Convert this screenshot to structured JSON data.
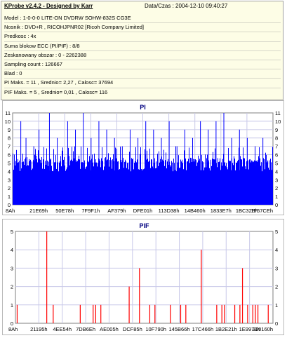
{
  "info": {
    "app_title": "KProbe v2.4.2 - Designed by Karr",
    "datetime_label": "Data/Czas :",
    "datetime_value": "2004-12-10 09:40:27",
    "lines": [
      "Model : 1-0-0-0 LITE-ON DVDRW SOHW-832S  CG3E",
      "Nosnik : DVD+R , RICOHJPNR02 [Ricoh Company Limited]",
      "Predkosc : 4x",
      "Suma blokow ECC (PI/PIF) : 8/8",
      "Zeskanowany obszar : 0 - 2262388",
      "Sampling count : 126667",
      "Blad : 0",
      "PI Maks. = 11 , Srednio= 2,27 , Calosc= 37694",
      "PIF Maks. = 5 , Srednio= 0,01 , Calosc= 116"
    ]
  },
  "colors": {
    "pi_fill": "#0000ff",
    "pif_bar": "#ff0000",
    "grid": "#c8c8e8",
    "title": "#000080",
    "info_bg": "#fdfde6"
  },
  "chart_data": [
    {
      "type": "bar",
      "title": "PI",
      "ylim": [
        0,
        11
      ],
      "yticks": [
        0,
        1,
        2,
        3,
        4,
        5,
        6,
        7,
        8,
        9,
        10,
        11
      ],
      "xticks": [
        "8Ah",
        "21E69h",
        "50E78h",
        "7F9F1h",
        "AF379h",
        "DFE01h",
        "113D38h",
        "14B460h",
        "1833E7h",
        "1BC32Eh",
        "1F57CEh"
      ],
      "grid": true,
      "description_values": {
        "baseline": 5,
        "typical_range": [
          4,
          7
        ],
        "max": 11,
        "average": 2.27
      },
      "spikes": [
        {
          "x": 0.03,
          "value": 10
        },
        {
          "x": 0.05,
          "value": 8
        },
        {
          "x": 0.08,
          "value": 7
        },
        {
          "x": 0.1,
          "value": 9
        },
        {
          "x": 0.14,
          "value": 11
        },
        {
          "x": 0.17,
          "value": 8
        },
        {
          "x": 0.21,
          "value": 10
        },
        {
          "x": 0.24,
          "value": 9
        },
        {
          "x": 0.27,
          "value": 11
        },
        {
          "x": 0.3,
          "value": 8
        },
        {
          "x": 0.33,
          "value": 10
        },
        {
          "x": 0.36,
          "value": 9
        },
        {
          "x": 0.39,
          "value": 8
        },
        {
          "x": 0.42,
          "value": 7
        },
        {
          "x": 0.45,
          "value": 9
        },
        {
          "x": 0.48,
          "value": 8
        },
        {
          "x": 0.51,
          "value": 10
        },
        {
          "x": 0.54,
          "value": 9
        },
        {
          "x": 0.57,
          "value": 8
        },
        {
          "x": 0.6,
          "value": 10
        },
        {
          "x": 0.63,
          "value": 7
        },
        {
          "x": 0.66,
          "value": 9
        },
        {
          "x": 0.69,
          "value": 8
        },
        {
          "x": 0.72,
          "value": 10
        },
        {
          "x": 0.75,
          "value": 9
        },
        {
          "x": 0.78,
          "value": 10
        },
        {
          "x": 0.81,
          "value": 11
        },
        {
          "x": 0.84,
          "value": 8
        },
        {
          "x": 0.87,
          "value": 9
        },
        {
          "x": 0.9,
          "value": 8
        },
        {
          "x": 0.93,
          "value": 7
        },
        {
          "x": 0.96,
          "value": 8
        }
      ]
    },
    {
      "type": "bar",
      "title": "PIF",
      "ylim": [
        0,
        5
      ],
      "yticks": [
        0,
        1,
        2,
        3,
        4,
        5
      ],
      "xticks": [
        "8Ah",
        "21195h",
        "4EE54h",
        "7DB6Eh",
        "AE005h",
        "DCF85h",
        "10F790h",
        "145B66h",
        "17C466h",
        "1B2E21h",
        "1E9978h",
        "220160h"
      ],
      "grid": true,
      "series": [
        {
          "x": [
            0.005,
            0.12,
            0.145,
            0.25,
            0.3,
            0.31,
            0.33,
            0.44,
            0.48,
            0.52,
            0.54,
            0.6,
            0.64,
            0.66,
            0.72,
            0.78,
            0.8,
            0.81,
            0.85,
            0.87,
            0.88,
            0.9,
            0.92,
            0.93,
            0.94,
            0.98
          ],
          "values": [
            1,
            5,
            1,
            1,
            1,
            1,
            1,
            2,
            3,
            1,
            1,
            1,
            1,
            1,
            4,
            1,
            1,
            1,
            1,
            1,
            3,
            1,
            1,
            1,
            1,
            1
          ]
        }
      ]
    }
  ]
}
